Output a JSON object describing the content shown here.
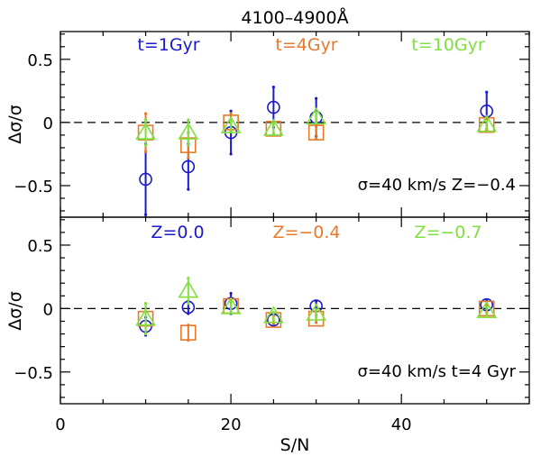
{
  "chart_data": {
    "type": "scatter",
    "title": "4100–4900Å",
    "xlabel": "S/N",
    "ylabel": "Δσ/σ",
    "xlim": [
      0,
      55
    ],
    "ylim": [
      -0.75,
      0.72
    ],
    "x_ticks": [
      0,
      20,
      40
    ],
    "x_tick_labels": [
      "0",
      "20",
      "40"
    ],
    "y_ticks": [
      -0.5,
      0,
      0.5
    ],
    "y_tick_labels": [
      "−0.5",
      "0",
      "0.5"
    ],
    "reference_line": 0,
    "panels": [
      {
        "id": "top",
        "annotation": "σ=40 km/s Z=−0.4",
        "series": [
          {
            "name": "t=1Gyr",
            "color": "#1a1acc",
            "marker": "circle",
            "x": [
              10,
              15,
              20,
              25,
              30,
              50
            ],
            "y": [
              -0.45,
              -0.35,
              -0.08,
              0.12,
              0.04,
              0.09
            ],
            "err": [
              0.28,
              0.18,
              0.17,
              0.16,
              0.15,
              0.15
            ]
          },
          {
            "name": "t=4Gyr",
            "color": "#e8792a",
            "marker": "square",
            "x": [
              10,
              15,
              20,
              25,
              30,
              50
            ],
            "y": [
              -0.08,
              -0.18,
              0.0,
              -0.05,
              -0.08,
              -0.02
            ],
            "err": [
              0.15,
              0.1,
              0.07,
              0.05,
              0.05,
              0.04
            ]
          },
          {
            "name": "t=10Gyr",
            "color": "#80e040",
            "marker": "triangle",
            "x": [
              10,
              15,
              20,
              25,
              30,
              50
            ],
            "y": [
              -0.08,
              -0.08,
              -0.03,
              -0.05,
              0.04,
              -0.02
            ],
            "err": [
              0.1,
              0.1,
              0.04,
              0.04,
              0.04,
              0.03
            ]
          }
        ]
      },
      {
        "id": "bottom",
        "annotation": "σ=40 km/s t=4 Gyr",
        "series": [
          {
            "name": "Z=0.0",
            "color": "#1a1acc",
            "marker": "circle",
            "x": [
              10,
              15,
              20,
              25,
              30,
              50
            ],
            "y": [
              -0.14,
              0.01,
              0.04,
              -0.09,
              0.02,
              0.03
            ],
            "err": [
              0.07,
              0.05,
              0.08,
              0.04,
              0.04,
              0.03
            ]
          },
          {
            "name": "Z=−0.4",
            "color": "#e8792a",
            "marker": "square",
            "x": [
              10,
              15,
              20,
              25,
              30,
              50
            ],
            "y": [
              -0.08,
              -0.19,
              0.02,
              -0.09,
              -0.08,
              0.0
            ],
            "err": [
              0.12,
              0.06,
              0.05,
              0.03,
              0.03,
              0.03
            ]
          },
          {
            "name": "Z=−0.7",
            "color": "#80e040",
            "marker": "triangle",
            "x": [
              10,
              15,
              20,
              25,
              30,
              50
            ],
            "y": [
              -0.08,
              0.14,
              0.01,
              -0.06,
              -0.04,
              -0.02
            ],
            "err": [
              0.12,
              0.1,
              0.04,
              0.03,
              0.03,
              0.03
            ]
          }
        ]
      }
    ]
  }
}
